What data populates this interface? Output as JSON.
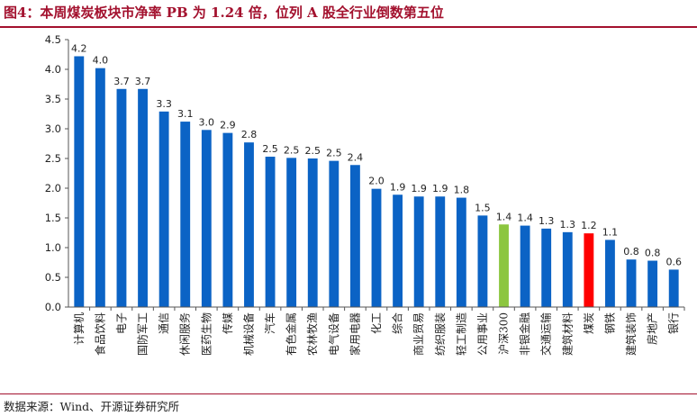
{
  "header": {
    "title": "图4：本周煤炭板块市净率 PB 为 1.24 倍，位列 A 股全行业倒数第五位"
  },
  "footer": {
    "source": "数据来源：Wind、开源证券研究所"
  },
  "chart_data": {
    "type": "bar",
    "title": "",
    "xlabel": "",
    "ylabel": "",
    "ylim": [
      0,
      4.5
    ],
    "yticks": [
      "0.0",
      "0.5",
      "1.0",
      "1.5",
      "2.0",
      "2.5",
      "3.0",
      "3.5",
      "4.0",
      "4.5"
    ],
    "grid": false,
    "legend": "none",
    "categories": [
      "计算机",
      "食品饮料",
      "电子",
      "国防军工",
      "通信",
      "休闲服务",
      "医药生物",
      "传媒",
      "机械设备",
      "汽车",
      "有色金属",
      "农林牧渔",
      "电气设备",
      "家用电器",
      "化工",
      "综合",
      "商业贸易",
      "纺织服装",
      "轻工制造",
      "公用事业",
      "沪深300",
      "非银金融",
      "交通运输",
      "建筑材料",
      "煤炭",
      "钢铁",
      "建筑装饰",
      "房地产",
      "银行"
    ],
    "values": [
      4.22,
      4.02,
      3.67,
      3.67,
      3.29,
      3.12,
      2.98,
      2.93,
      2.77,
      2.53,
      2.51,
      2.5,
      2.46,
      2.39,
      1.99,
      1.89,
      1.86,
      1.86,
      1.84,
      1.54,
      1.39,
      1.37,
      1.32,
      1.26,
      1.24,
      1.13,
      0.8,
      0.78,
      0.63
    ],
    "data_labels": [
      "4.2",
      "4.0",
      "3.7",
      "3.7",
      "3.3",
      "3.1",
      "3.0",
      "2.9",
      "2.8",
      "2.5",
      "2.5",
      "2.5",
      "2.5",
      "2.4",
      "2.0",
      "1.9",
      "1.9",
      "1.9",
      "1.8",
      "1.5",
      "1.4",
      "1.4",
      "1.3",
      "1.3",
      "1.2",
      "1.1",
      "0.8",
      "0.8",
      "0.6"
    ],
    "colors": {
      "default": "#0b63c5",
      "benchmark": "#8cc63f",
      "highlight": "#ff0000"
    },
    "benchmark_category": "沪深300",
    "highlight_category": "煤炭"
  }
}
